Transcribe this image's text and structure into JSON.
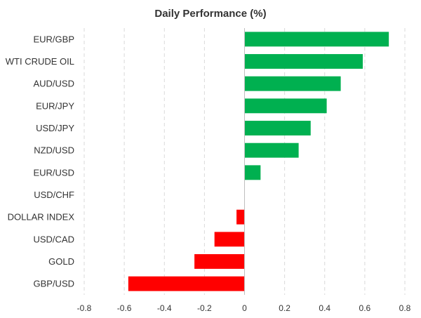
{
  "chart_data": {
    "type": "bar",
    "orientation": "horizontal",
    "title": "Daily Performance (%)",
    "xlabel": "",
    "ylabel": "",
    "categories": [
      "EUR/GBP",
      "WTI CRUDE OIL",
      "AUD/USD",
      "EUR/JPY",
      "USD/JPY",
      "NZD/USD",
      "EUR/USD",
      "USD/CHF",
      "DOLLAR INDEX",
      "USD/CAD",
      "GOLD",
      "GBP/USD"
    ],
    "values": [
      0.72,
      0.59,
      0.48,
      0.41,
      0.33,
      0.27,
      0.08,
      0.0,
      -0.04,
      -0.15,
      -0.25,
      -0.58
    ],
    "xlim": [
      -0.8,
      0.8
    ],
    "xticks": [
      -0.8,
      -0.6,
      -0.4,
      -0.2,
      0,
      0.2,
      0.4,
      0.6,
      0.8
    ],
    "xtick_labels": [
      "-0.8",
      "-0.6",
      "-0.4",
      "-0.2",
      "0",
      "0.2",
      "0.4",
      "0.6",
      "0.8"
    ],
    "grid": "vertical dashed",
    "positive_color": "#00b050",
    "negative_color": "#ff0000",
    "grid_color": "#d9d9d9",
    "axis_color": "#bfbfbf"
  }
}
